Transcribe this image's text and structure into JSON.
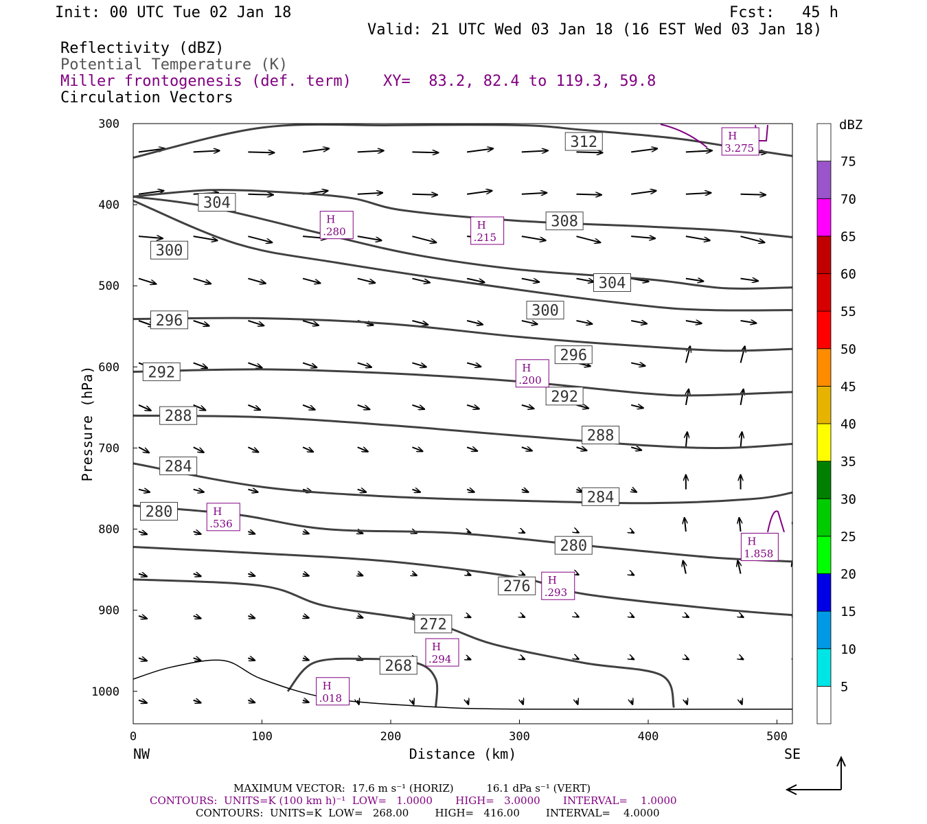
{
  "header": {
    "init": "Init: 00 UTC Tue 02 Jan 18",
    "fcst": "Fcst:   45 h",
    "valid": "Valid: 21 UTC Wed 03 Jan 18 (16 EST Wed 03 Jan 18)",
    "field1": "Reflectivity (dBZ)",
    "field2": "Potential Temperature (K)",
    "field3": "Miller frontogenesis (def. term)",
    "xy": "XY=  83.2, 82.4 to 119.3, 59.8",
    "field4": "Circulation Vectors"
  },
  "footer": {
    "maxvec": "MAXIMUM VECTOR:  17.6 m s⁻¹ (HORIZ)          16.1 dPa s⁻¹ (VERT)",
    "contours1": "CONTOURS:  UNITS=K (100 km h)⁻¹  LOW=   1.0000       HIGH=   3.0000       INTERVAL=    1.0000",
    "contours2": "CONTOURS:  UNITS=K  LOW=   268.00        HIGH=   416.00        INTERVAL=    4.0000"
  },
  "colors": {
    "theta": "#404040",
    "frontogenesis": "#800080",
    "vectors": "#000000"
  },
  "chart_data": {
    "type": "cross-section",
    "xlabel": "Distance (km)",
    "ylabel": "Pressure (hPa)",
    "xlim": [
      0,
      512
    ],
    "ylim": [
      1040,
      300
    ],
    "xticks": [
      0,
      100,
      200,
      300,
      400,
      500
    ],
    "yticks": [
      300,
      400,
      500,
      600,
      700,
      800,
      900,
      1000
    ],
    "x_end_labels": {
      "left": "NW",
      "right": "SE"
    },
    "colorbar": {
      "title": "dBZ",
      "levels": [
        5,
        10,
        15,
        20,
        25,
        30,
        35,
        40,
        45,
        50,
        55,
        60,
        65,
        70,
        75
      ],
      "colors": [
        "#ffffff",
        "#00e6e6",
        "#0099e6",
        "#0000e6",
        "#00ff00",
        "#00cc00",
        "#008000",
        "#ffff00",
        "#e6b400",
        "#ff8c00",
        "#ff0000",
        "#d60000",
        "#c00000",
        "#ff00ff",
        "#9955c9",
        "#ffffff"
      ]
    },
    "theta_contours": [
      {
        "label": "312",
        "points": [
          [
            0,
            342
          ],
          [
            100,
            305
          ],
          [
            200,
            302
          ],
          [
            300,
            302
          ],
          [
            350,
            308
          ],
          [
            420,
            318
          ],
          [
            470,
            330
          ],
          [
            512,
            340
          ]
        ]
      },
      {
        "label": "308",
        "points": [
          [
            0,
            390
          ],
          [
            60,
            382
          ],
          [
            120,
            385
          ],
          [
            170,
            392
          ],
          [
            210,
            407
          ],
          [
            300,
            420
          ],
          [
            400,
            427
          ],
          [
            460,
            432
          ],
          [
            512,
            440
          ]
        ]
      },
      {
        "label": "304",
        "points": [
          [
            0,
            390
          ],
          [
            60,
            403
          ],
          [
            150,
            437
          ],
          [
            220,
            462
          ],
          [
            300,
            480
          ],
          [
            400,
            492
          ],
          [
            460,
            503
          ],
          [
            512,
            502
          ]
        ]
      },
      {
        "label": "300",
        "points": [
          [
            0,
            395
          ],
          [
            80,
            448
          ],
          [
            160,
            472
          ],
          [
            300,
            505
          ],
          [
            400,
            525
          ],
          [
            450,
            530
          ],
          [
            512,
            530
          ]
        ]
      },
      {
        "label": "296",
        "points": [
          [
            0,
            541
          ],
          [
            100,
            540
          ],
          [
            200,
            547
          ],
          [
            300,
            563
          ],
          [
            400,
            575
          ],
          [
            460,
            580
          ],
          [
            512,
            578
          ]
        ]
      },
      {
        "label": "292",
        "points": [
          [
            0,
            606
          ],
          [
            100,
            603
          ],
          [
            200,
            608
          ],
          [
            300,
            618
          ],
          [
            400,
            633
          ],
          [
            440,
            635
          ],
          [
            512,
            631
          ]
        ]
      },
      {
        "label": "288",
        "points": [
          [
            0,
            660
          ],
          [
            100,
            662
          ],
          [
            200,
            672
          ],
          [
            300,
            685
          ],
          [
            400,
            697
          ],
          [
            460,
            700
          ],
          [
            512,
            695
          ]
        ]
      },
      {
        "label": "284",
        "points": [
          [
            0,
            719
          ],
          [
            100,
            748
          ],
          [
            200,
            760
          ],
          [
            300,
            765
          ],
          [
            400,
            768
          ],
          [
            480,
            763
          ],
          [
            512,
            755
          ]
        ]
      },
      {
        "label": "280",
        "points": [
          [
            0,
            771
          ],
          [
            80,
            782
          ],
          [
            150,
            800
          ],
          [
            250,
            805
          ],
          [
            350,
            820
          ],
          [
            450,
            835
          ],
          [
            512,
            840
          ]
        ]
      },
      {
        "label": "276",
        "points": [
          [
            0,
            822
          ],
          [
            100,
            830
          ],
          [
            200,
            840
          ],
          [
            300,
            860
          ],
          [
            350,
            880
          ],
          [
            450,
            898
          ],
          [
            512,
            906
          ]
        ]
      },
      {
        "label": "272",
        "points": [
          [
            0,
            862
          ],
          [
            100,
            870
          ],
          [
            150,
            895
          ],
          [
            230,
            915
          ],
          [
            280,
            942
          ],
          [
            350,
            965
          ],
          [
            410,
            980
          ],
          [
            420,
            1020
          ]
        ]
      },
      {
        "label": "268",
        "points": [
          [
            120,
            1000
          ],
          [
            140,
            965
          ],
          [
            180,
            960
          ],
          [
            220,
            965
          ],
          [
            235,
            985
          ],
          [
            235,
            1020
          ]
        ]
      }
    ],
    "frontogenesis_maxima": [
      {
        "label": "H",
        "value": "3.275",
        "x": 470,
        "p": 322
      },
      {
        "label": "H",
        "value": ".280",
        "x": 158,
        "p": 425
      },
      {
        "label": "H",
        "value": ".215",
        "x": 275,
        "p": 432
      },
      {
        "label": "H",
        "value": ".200",
        "x": 310,
        "p": 608
      },
      {
        "label": "H",
        "value": ".536",
        "x": 70,
        "p": 785
      },
      {
        "label": "H",
        "value": "1.858",
        "x": 485,
        "p": 822
      },
      {
        "label": "H",
        "value": ".293",
        "x": 330,
        "p": 870
      },
      {
        "label": "H",
        "value": ".294",
        "x": 240,
        "p": 952
      },
      {
        "label": "H",
        "value": ".018",
        "x": 155,
        "p": 1000
      }
    ]
  }
}
